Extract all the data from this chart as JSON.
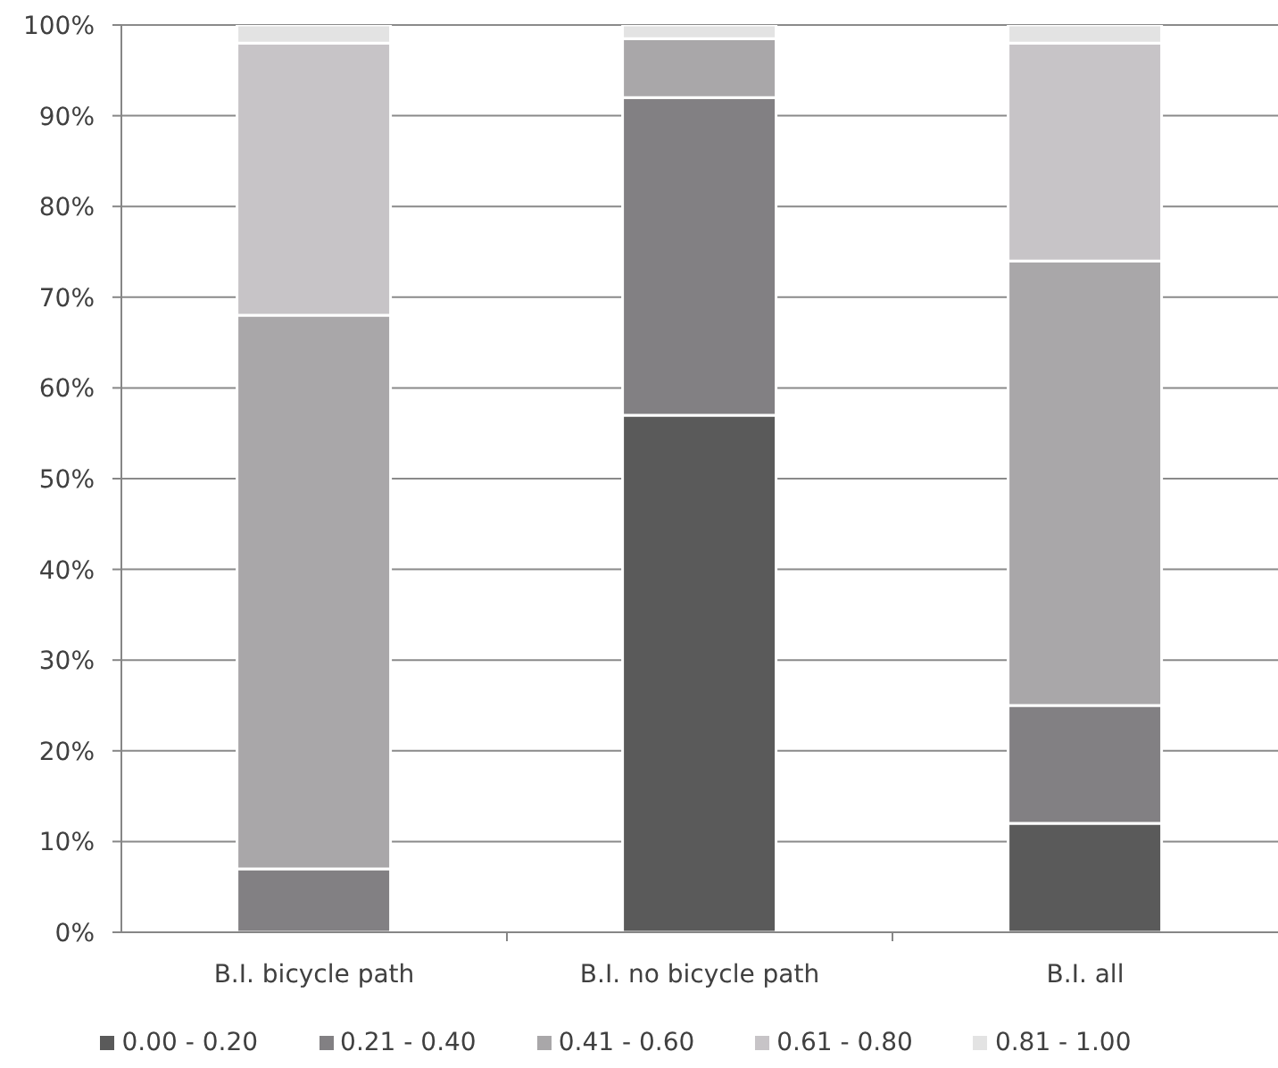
{
  "chart_data": {
    "type": "bar",
    "stacked": true,
    "categories": [
      "B.I. bicycle path",
      "B.I. no bicycle path",
      "B.I. all"
    ],
    "series": [
      {
        "name": "0.00 - 0.20",
        "color": "#5a5a5a",
        "values": [
          0,
          57,
          12
        ]
      },
      {
        "name": "0.21 - 0.40",
        "color": "#828083",
        "values": [
          7,
          35,
          13
        ]
      },
      {
        "name": "0.41 - 0.60",
        "color": "#a9a7a9",
        "values": [
          61,
          6.5,
          49
        ]
      },
      {
        "name": "0.61 - 0.80",
        "color": "#c7c4c7",
        "values": [
          30,
          0,
          24
        ]
      },
      {
        "name": "0.81 - 1.00",
        "color": "#e3e3e3",
        "values": [
          2,
          1.5,
          2
        ]
      }
    ],
    "ylim": [
      0,
      100
    ],
    "yticks": [
      {
        "value": 0,
        "label": "0%"
      },
      {
        "value": 10,
        "label": "10%"
      },
      {
        "value": 20,
        "label": "20%"
      },
      {
        "value": 30,
        "label": "30%"
      },
      {
        "value": 40,
        "label": "40%"
      },
      {
        "value": 50,
        "label": "50%"
      },
      {
        "value": 60,
        "label": "60%"
      },
      {
        "value": 70,
        "label": "70%"
      },
      {
        "value": 80,
        "label": "80%"
      },
      {
        "value": 90,
        "label": "90%"
      },
      {
        "value": 100,
        "label": "100%"
      }
    ],
    "grid": "y",
    "legend": "bottom"
  }
}
